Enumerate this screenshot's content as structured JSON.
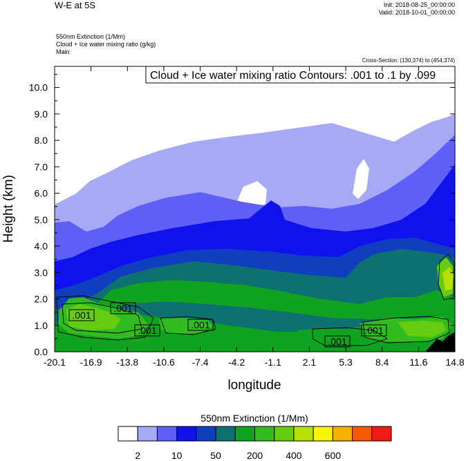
{
  "header": {
    "title": "W-E at 5S",
    "init": "Init: 2018-08-25_00:00:00",
    "valid": "Valid: 2018-10-01_00:00:00",
    "field1": "550nm Extinction   (1/Mm)",
    "field2": "Cloud + Ice water mixing ratio   (g/kg)",
    "field3": "Main",
    "cross_section": "Cross-Section: (130,374) to (454,374)"
  },
  "chart_data": {
    "type": "heatmap",
    "title": "",
    "annotation": "Cloud + Ice water mixing ratio Contours: .001 to .1 by .099",
    "xlabel": "longitude",
    "ylabel": "Height (km)",
    "x_ticks": [
      "-20.1",
      "-16.9",
      "-13.8",
      "-10.6",
      "-7.4",
      "-4.2",
      "-1.1",
      "2.1",
      "5.3",
      "8.4",
      "11.6",
      "14.8"
    ],
    "y_ticks": [
      "0.0",
      "1.0",
      "2.0",
      "3.0",
      "4.0",
      "5.0",
      "6.0",
      "7.0",
      "8.0",
      "9.0",
      "10.0"
    ],
    "xlim": [
      -20.1,
      14.8
    ],
    "ylim": [
      0,
      10.8
    ],
    "contour_labels": [
      ".001",
      ".001",
      ".001",
      ".001",
      ".001",
      ".001"
    ],
    "colorbar": {
      "title": "550nm Extinction  (1/Mm)",
      "colors": [
        "#ffffff",
        "#a6a9f5",
        "#5e60f5",
        "#1111ee",
        "#0f3fbf",
        "#0f7070",
        "#10a320",
        "#33bb22",
        "#66cc11",
        "#b5e000",
        "#f5f500",
        "#f5b000",
        "#f55a00",
        "#f51a1a"
      ],
      "labels": [
        "2",
        "10",
        "50",
        "200",
        "400",
        "600"
      ]
    }
  }
}
